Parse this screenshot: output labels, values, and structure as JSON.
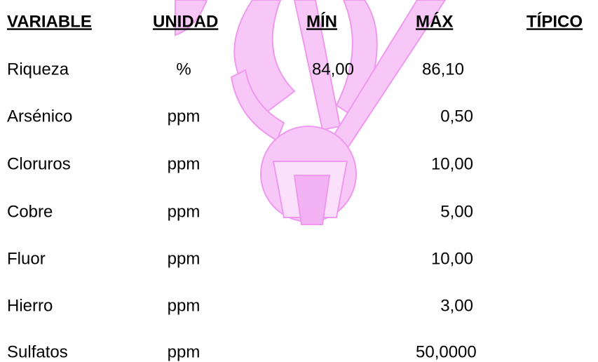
{
  "table": {
    "headers": [
      "VARIABLE",
      "UNIDAD",
      "MÍN",
      "MÁX",
      "TÍPICO"
    ],
    "rows": [
      {
        "variable": "Riqueza",
        "unit": "%",
        "min": "84,00",
        "max": "86,10"
      },
      {
        "variable": "Arsénico",
        "unit": "ppm",
        "max": "0,50"
      },
      {
        "variable": "Cloruros",
        "unit": "ppm",
        "max": "10,00"
      },
      {
        "variable": "Cobre",
        "unit": "ppm",
        "max": "5,00"
      },
      {
        "variable": "Fluor",
        "unit": "ppm",
        "max": "10,00"
      },
      {
        "variable": "Hierro",
        "unit": "ppm",
        "max": "3,00"
      },
      {
        "variable": "Sulfatos",
        "unit": "ppm",
        "max": "50,0000"
      }
    ]
  }
}
